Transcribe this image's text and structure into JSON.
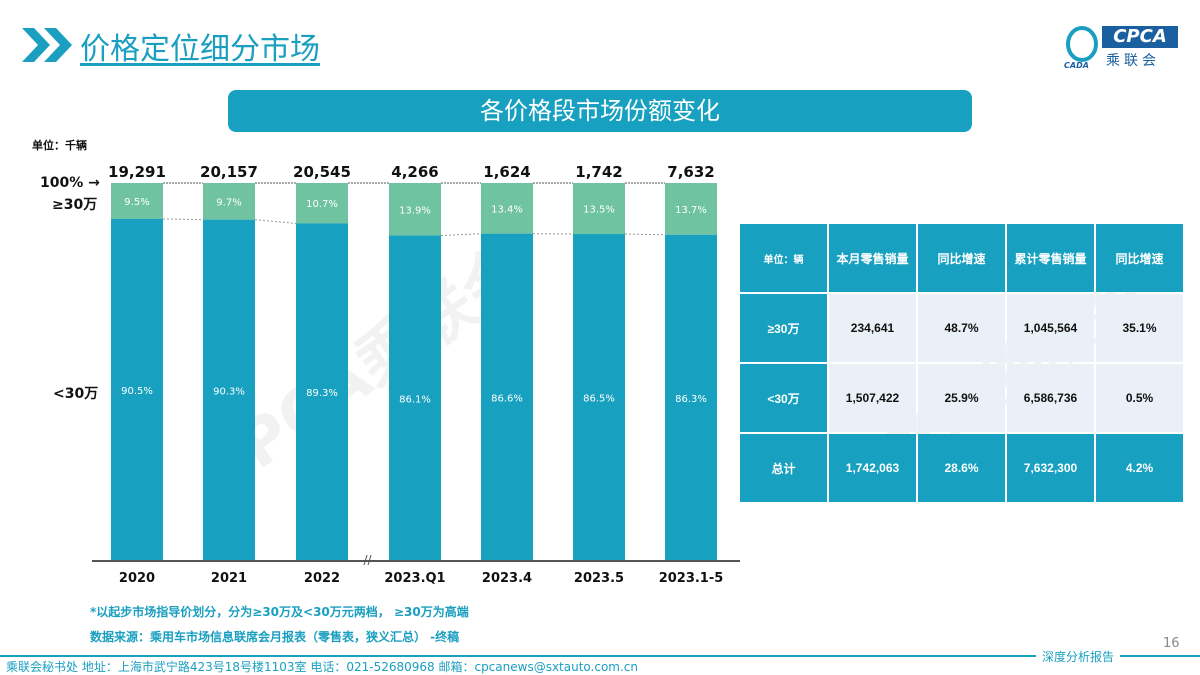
{
  "header": {
    "title": "价格定位细分市场",
    "logo_text": "CPCA",
    "logo_sub": "乘联会",
    "logo_small": "CADA"
  },
  "banner": "各价格段市场份额变化",
  "watermark": "CPCA乘联会",
  "chart_data": {
    "type": "bar",
    "stacked": true,
    "normalized": true,
    "unit": "单位：千辆",
    "categories": [
      "2020",
      "2021",
      "2022",
      "2023.Q1",
      "2023.4",
      "2023.5",
      "2023.1-5"
    ],
    "totals": [
      "19,291",
      "20,157",
      "20,545",
      "4,266",
      "1,624",
      "1,742",
      "7,632"
    ],
    "series": [
      {
        "name": "≥30万",
        "values": [
          9.5,
          9.7,
          10.7,
          13.9,
          13.4,
          13.5,
          13.7
        ],
        "labels": [
          "9.5%",
          "9.7%",
          "10.7%",
          "13.9%",
          "13.4%",
          "13.5%",
          "13.7%"
        ],
        "color": "#6fc3a0"
      },
      {
        "name": "<30万",
        "values": [
          90.5,
          90.3,
          89.3,
          86.1,
          86.6,
          86.5,
          86.3
        ],
        "labels": [
          "90.5%",
          "90.3%",
          "89.3%",
          "86.1%",
          "86.6%",
          "86.5%",
          "86.3%"
        ],
        "color": "#17a0bf"
      }
    ],
    "top_label": "100% →",
    "ylim": [
      0,
      100
    ],
    "axis_break_after": "2022"
  },
  "table": {
    "header": [
      "单位：辆",
      "本月零售销量",
      "同比增速",
      "累计零售销量",
      "同比增速"
    ],
    "rows": [
      [
        "≥30万",
        "234,641",
        "48.7%",
        "1,045,564",
        "35.1%"
      ],
      [
        "<30万",
        "1,507,422",
        "25.9%",
        "6,586,736",
        "0.5%"
      ]
    ],
    "total": [
      "总计",
      "1,742,063",
      "28.6%",
      "7,632,300",
      "4.2%"
    ]
  },
  "notes": [
    "*以起步市场指导价划分，分为≥30万及<30万元两档， ≥30万为高端",
    "数据来源：乘用车市场信息联席会月报表（零售表，狭义汇总） -终稿"
  ],
  "footer": "乘联会秘书处   地址：上海市武宁路423号18号楼1103室  电话：021-52680968   邮箱：cpcanews@sxtauto.com.cn",
  "report_label": "深度分析报告",
  "page_number": "16"
}
